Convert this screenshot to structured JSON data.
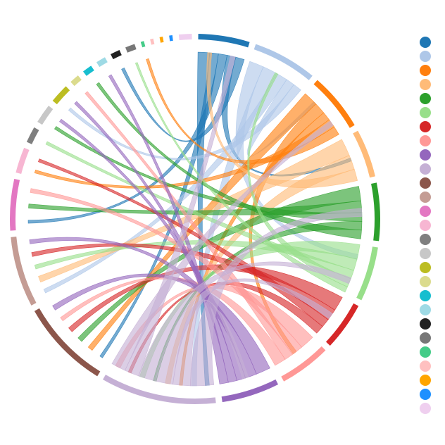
{
  "chart_data": {
    "type": "chord",
    "nodes": {
      "colors": [
        "#1f77b4",
        "#aec7e8",
        "#ff7f0e",
        "#ffbb78",
        "#2ca02c",
        "#98df8a",
        "#d62728",
        "#ff9896",
        "#9467bd",
        "#c5b0d5",
        "#8c564b",
        "#c49c94",
        "#e377c2",
        "#f7b6d2",
        "#7f7f7f",
        "#c7c7c7",
        "#bcbd22",
        "#dbdb8d",
        "#17becf",
        "#9edae5",
        "#222222",
        "#777777",
        "#44cc88",
        "#ffc0c0",
        "#ffa500",
        "#1e90ff",
        "#efcfef"
      ],
      "values": [
        16,
        20,
        18,
        15,
        18,
        17,
        15,
        16,
        18,
        36,
        28,
        22,
        16,
        8,
        5,
        6,
        6,
        3,
        3,
        3,
        3,
        3,
        1,
        1,
        1,
        1,
        4
      ]
    },
    "chords": [
      {
        "source": 0,
        "target": 9,
        "value": 4
      },
      {
        "source": 0,
        "target": 10,
        "value": 3
      },
      {
        "source": 0,
        "target": 12,
        "value": 3
      },
      {
        "source": 0,
        "target": 3,
        "value": 3
      },
      {
        "source": 0,
        "target": 20,
        "value": 3
      },
      {
        "source": 1,
        "target": 5,
        "value": 5
      },
      {
        "source": 1,
        "target": 9,
        "value": 5
      },
      {
        "source": 1,
        "target": 11,
        "value": 4
      },
      {
        "source": 1,
        "target": 2,
        "value": 3
      },
      {
        "source": 1,
        "target": 16,
        "value": 3
      },
      {
        "source": 2,
        "target": 10,
        "value": 5
      },
      {
        "source": 2,
        "target": 7,
        "value": 4
      },
      {
        "source": 2,
        "target": 9,
        "value": 3
      },
      {
        "source": 2,
        "target": 13,
        "value": 3
      },
      {
        "source": 2,
        "target": 22,
        "value": 3
      },
      {
        "source": 3,
        "target": 11,
        "value": 6
      },
      {
        "source": 3,
        "target": 9,
        "value": 5
      },
      {
        "source": 3,
        "target": 0,
        "value": 4
      },
      {
        "source": 4,
        "target": 10,
        "value": 5
      },
      {
        "source": 4,
        "target": 12,
        "value": 4
      },
      {
        "source": 4,
        "target": 15,
        "value": 3
      },
      {
        "source": 4,
        "target": 9,
        "value": 3
      },
      {
        "source": 4,
        "target": 18,
        "value": 3
      },
      {
        "source": 5,
        "target": 9,
        "value": 5
      },
      {
        "source": 5,
        "target": 11,
        "value": 4
      },
      {
        "source": 5,
        "target": 14,
        "value": 3
      },
      {
        "source": 5,
        "target": 1,
        "value": 3
      },
      {
        "source": 5,
        "target": 21,
        "value": 2
      },
      {
        "source": 6,
        "target": 10,
        "value": 5
      },
      {
        "source": 6,
        "target": 11,
        "value": 4
      },
      {
        "source": 6,
        "target": 13,
        "value": 3
      },
      {
        "source": 6,
        "target": 9,
        "value": 3
      },
      {
        "source": 7,
        "target": 9,
        "value": 5
      },
      {
        "source": 7,
        "target": 12,
        "value": 4
      },
      {
        "source": 7,
        "target": 17,
        "value": 3
      },
      {
        "source": 7,
        "target": 10,
        "value": 4
      },
      {
        "source": 8,
        "target": 10,
        "value": 5
      },
      {
        "source": 8,
        "target": 11,
        "value": 4
      },
      {
        "source": 8,
        "target": 15,
        "value": 3
      },
      {
        "source": 8,
        "target": 16,
        "value": 3
      },
      {
        "source": 8,
        "target": 19,
        "value": 3
      },
      {
        "source": 9,
        "target": 4,
        "value": 8
      },
      {
        "source": 9,
        "target": 8,
        "value": 6
      },
      {
        "source": 9,
        "target": 6,
        "value": 6
      },
      {
        "source": 9,
        "target": 5,
        "value": 6
      },
      {
        "source": 9,
        "target": 0,
        "value": 5
      },
      {
        "source": 9,
        "target": 2,
        "value": 5
      }
    ]
  }
}
